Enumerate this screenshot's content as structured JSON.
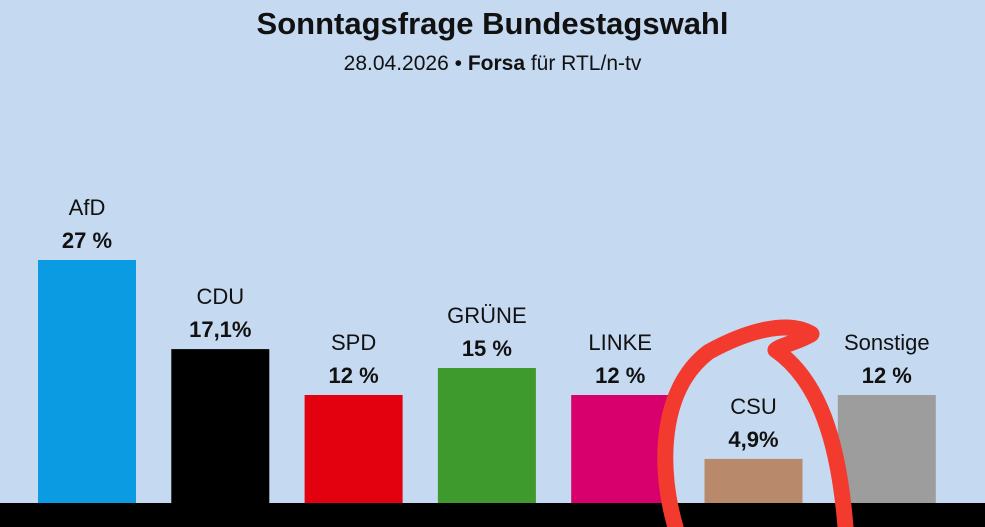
{
  "chart_data": {
    "type": "bar",
    "title": "Sonntagsfrage Bundestagswahl",
    "subtitle": {
      "date": "28.04.2026",
      "separator": "•",
      "institute": "Forsa",
      "client": "für RTL/n-tv"
    },
    "categories": [
      "AfD",
      "CDU",
      "SPD",
      "GRÜNE",
      "LINKE",
      "CSU",
      "Sonstige"
    ],
    "values": [
      27,
      17.1,
      12,
      15,
      12,
      4.9,
      12
    ],
    "value_labels": [
      "27 %",
      "17,1%",
      "12 %",
      "15 %",
      "12 %",
      "4,9%",
      "12 %"
    ],
    "colors": [
      "#0a9be2",
      "#000000",
      "#e3000f",
      "#3f9a2e",
      "#d8006d",
      "#b8896a",
      "#9d9d9d"
    ],
    "ylim": [
      0,
      30
    ],
    "grid": false,
    "annotation": {
      "shape": "freehand-circle",
      "target": "CSU",
      "color": "#f23b2e"
    }
  }
}
